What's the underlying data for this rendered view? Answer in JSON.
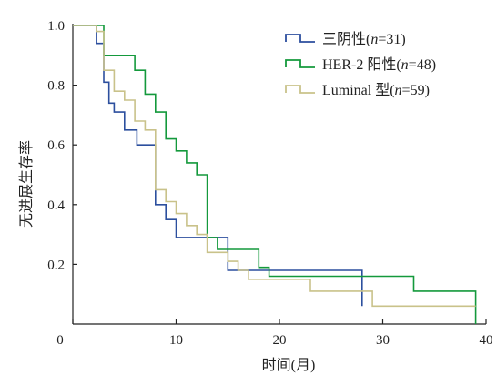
{
  "chart_data": {
    "type": "line",
    "step": true,
    "xlabel": "时间(月)",
    "ylabel": "无进展生存率",
    "xlim": [
      0,
      40
    ],
    "ylim": [
      0,
      1.0
    ],
    "x_ticks": [
      0,
      10,
      20,
      30,
      40
    ],
    "x_tick_labels": [
      "0",
      "10",
      "20",
      "30",
      "40"
    ],
    "y_ticks": [
      0.2,
      0.4,
      0.6,
      0.8,
      1.0
    ],
    "y_tick_labels": [
      "0.2",
      "0.4",
      "0.6",
      "0.8",
      "1.0"
    ],
    "grid": false,
    "legend_position": "top-right",
    "series": [
      {
        "name": "三阴性(n=31)",
        "legend_prefix": "三阴性(",
        "legend_n": "n",
        "legend_suffix": "=31)",
        "color": "#2c4f9e",
        "x": [
          0,
          2,
          2.3,
          3,
          3.5,
          4,
          5,
          6.2,
          8,
          9,
          10,
          15,
          28
        ],
        "y": [
          1.0,
          1.0,
          0.94,
          0.81,
          0.74,
          0.71,
          0.65,
          0.6,
          0.4,
          0.35,
          0.29,
          0.18,
          0.06
        ]
      },
      {
        "name": "HER-2阳性(n=48)",
        "legend_prefix": "HER-2 阳性(",
        "legend_n": "n",
        "legend_suffix": "=48)",
        "color": "#14993c",
        "x": [
          0,
          2.3,
          3,
          6,
          7,
          8,
          9,
          10,
          11,
          12,
          13,
          14,
          18,
          19,
          33,
          39
        ],
        "y": [
          1.0,
          1.0,
          0.9,
          0.85,
          0.77,
          0.71,
          0.62,
          0.58,
          0.54,
          0.5,
          0.29,
          0.25,
          0.19,
          0.16,
          0.11,
          0.0
        ]
      },
      {
        "name": "Luminal型(n=59)",
        "legend_prefix": "Luminal 型(",
        "legend_n": "n",
        "legend_suffix": "=59)",
        "color": "#c9c28a",
        "x": [
          0,
          1,
          2.3,
          3,
          4,
          5,
          6,
          7,
          8,
          9,
          10,
          11,
          12,
          13,
          15,
          16,
          17,
          18,
          23,
          29,
          39
        ],
        "y": [
          1.0,
          1.0,
          0.98,
          0.85,
          0.78,
          0.75,
          0.68,
          0.65,
          0.45,
          0.41,
          0.37,
          0.33,
          0.3,
          0.24,
          0.21,
          0.18,
          0.15,
          0.15,
          0.11,
          0.06,
          0.06
        ]
      }
    ]
  }
}
